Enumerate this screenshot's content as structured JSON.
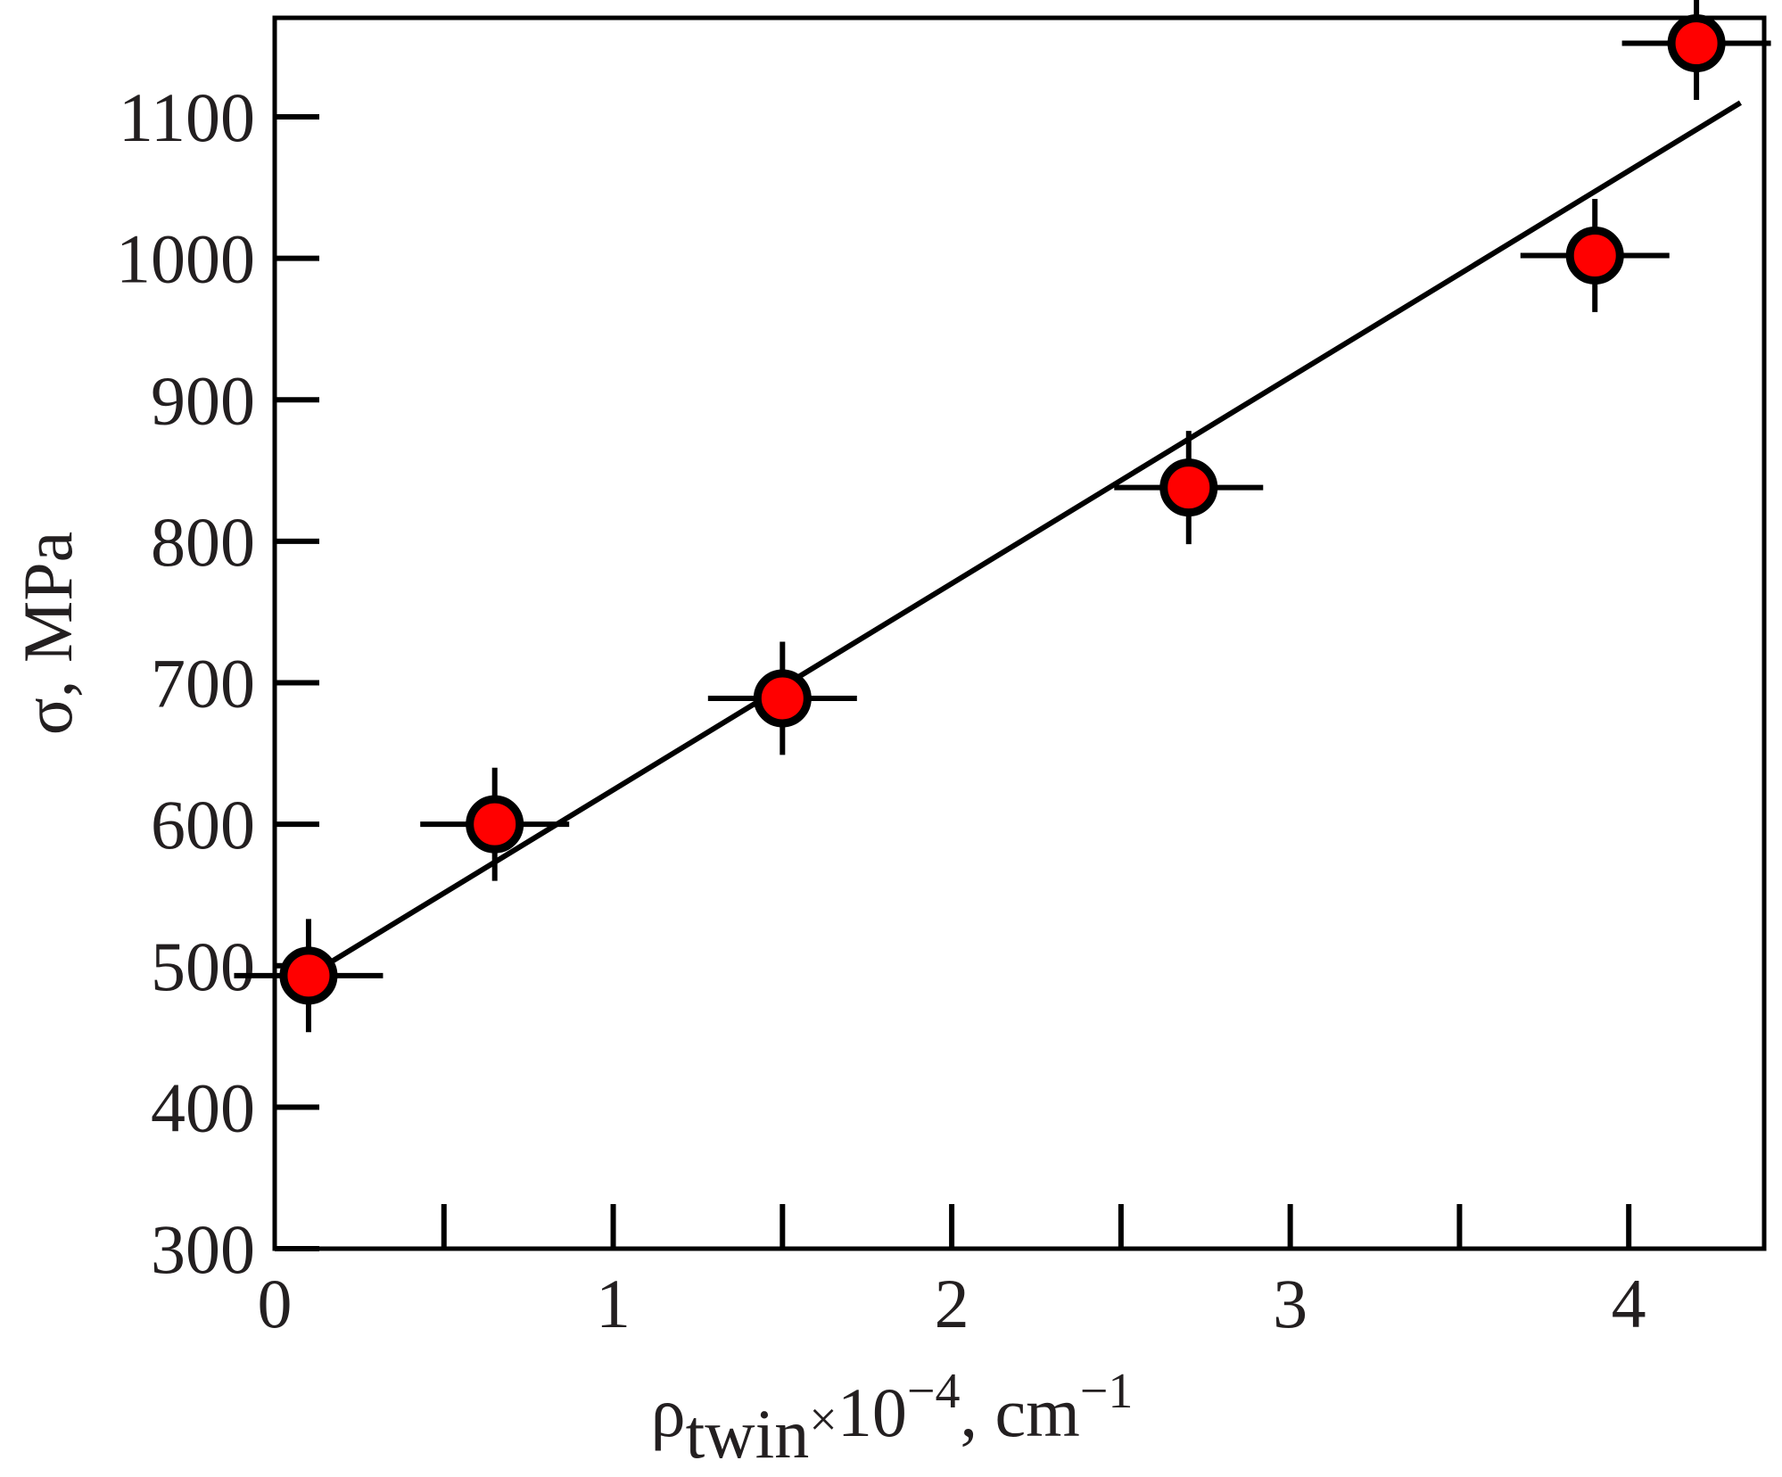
{
  "chart_data": {
    "type": "scatter",
    "title": "",
    "xlabel": {
      "symbol": "ρ",
      "subscript": "twin",
      "times": "×",
      "base": "10",
      "exponent": "−4",
      "unit_sep": ", ",
      "unit": "cm",
      "unit_exponent": "−1"
    },
    "ylabel": "σ, MPa",
    "xlim": [
      0,
      4.4
    ],
    "ylim": [
      300,
      1170
    ],
    "x_ticks": [
      0,
      1,
      2,
      3,
      4
    ],
    "x_tick_labels": [
      "0",
      "1",
      "2",
      "3",
      "4"
    ],
    "x_minor_ticks": [
      0.5,
      1.5,
      2.5,
      3.5
    ],
    "y_ticks": [
      300,
      400,
      500,
      600,
      700,
      800,
      900,
      1000,
      1100
    ],
    "y_tick_labels": [
      "300",
      "400",
      "500",
      "600",
      "700",
      "800",
      "900",
      "1000",
      "1100"
    ],
    "grid": false,
    "series": [
      {
        "marker_color": "#ff0000",
        "points": [
          {
            "x": 0.1,
            "y": 493,
            "xerr": 0.22,
            "yerr": 40
          },
          {
            "x": 0.65,
            "y": 600,
            "xerr": 0.22,
            "yerr": 40
          },
          {
            "x": 1.5,
            "y": 689,
            "xerr": 0.22,
            "yerr": 40
          },
          {
            "x": 2.7,
            "y": 838,
            "xerr": 0.22,
            "yerr": 40
          },
          {
            "x": 3.9,
            "y": 1002,
            "xerr": 0.22,
            "yerr": 40
          },
          {
            "x": 4.2,
            "y": 1152,
            "xerr": 0.22,
            "yerr": 40
          }
        ]
      }
    ],
    "fit_line": {
      "x": [
        0.1,
        4.33
      ],
      "y": [
        493,
        1110
      ]
    }
  }
}
